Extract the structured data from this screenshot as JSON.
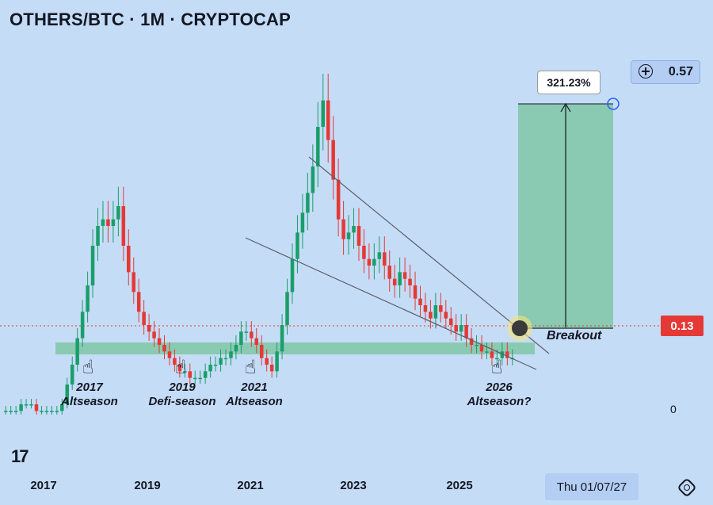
{
  "header": {
    "title": "OTHERS/BTC · 1M · CRYPTOCAP"
  },
  "price_axis": {
    "current_price": "0.13",
    "target_price": "0.57",
    "zero_label": "0"
  },
  "projection": {
    "percent_label": "321.23%",
    "breakout_label": "Breakout"
  },
  "annotations": [
    {
      "year": "2017",
      "label": "Altseason"
    },
    {
      "year": "2019",
      "label": "Defi-season"
    },
    {
      "year": "2021",
      "label": "Altseason"
    },
    {
      "year": "2026",
      "label": "Altseason?"
    }
  ],
  "crosshair": {
    "date_label": "Thu 01/07/27"
  },
  "brand": {
    "logo_text": "17"
  },
  "chart_data": {
    "type": "candlestick",
    "title": "OTHERS/BTC · 1M · CRYPTOCAP",
    "x_ticks": [
      "2017",
      "2019",
      "2021",
      "2023",
      "2025"
    ],
    "current_price": 0.13,
    "target_price": 0.57,
    "gain_percent": 321.23,
    "colors": {
      "up": "#1a9e6a",
      "down": "#e53935",
      "support_zone": "#7fc7a6",
      "target_zone": "#7fc7a6"
    },
    "grid": false,
    "ylim": [
      0,
      0.6
    ],
    "series": [
      {
        "name": "OTHERS/BTC",
        "values": [
          0.05,
          0.05,
          0.05,
          0.06,
          0.06,
          0.06,
          0.05,
          0.05,
          0.05,
          0.05,
          0.05,
          0.06,
          0.09,
          0.12,
          0.16,
          0.2,
          0.24,
          0.3,
          0.33,
          0.34,
          0.33,
          0.34,
          0.36,
          0.3,
          0.26,
          0.23,
          0.2,
          0.18,
          0.17,
          0.16,
          0.15,
          0.14,
          0.13,
          0.12,
          0.11,
          0.11,
          0.1,
          0.1,
          0.1,
          0.11,
          0.12,
          0.12,
          0.13,
          0.13,
          0.14,
          0.15,
          0.17,
          0.17,
          0.16,
          0.15,
          0.13,
          0.12,
          0.11,
          0.14,
          0.18,
          0.23,
          0.28,
          0.32,
          0.35,
          0.38,
          0.42,
          0.48,
          0.52,
          0.46,
          0.4,
          0.34,
          0.31,
          0.32,
          0.33,
          0.3,
          0.28,
          0.27,
          0.28,
          0.29,
          0.27,
          0.25,
          0.24,
          0.26,
          0.25,
          0.24,
          0.22,
          0.21,
          0.2,
          0.19,
          0.21,
          0.2,
          0.19,
          0.18,
          0.17,
          0.18,
          0.16,
          0.15,
          0.15,
          0.14,
          0.14,
          0.13,
          0.13,
          0.14,
          0.13,
          0.13
        ]
      }
    ]
  }
}
